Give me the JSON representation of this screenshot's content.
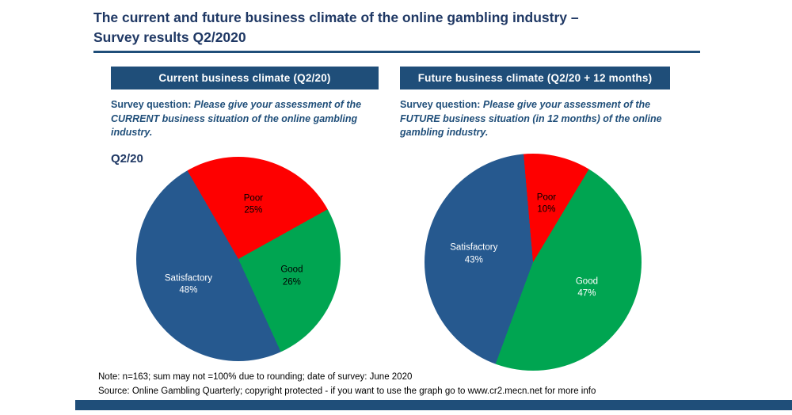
{
  "header": {
    "title_line1": "The current and future business climate of the online gambling industry –",
    "title_line2": "Survey results Q2/2020"
  },
  "panels": [
    {
      "header": "Current business climate (Q2/20)",
      "question_label": "Survey question:",
      "question_text": "Please give your assessment of the CURRENT business situation of the online gambling industry.",
      "period_label": "Q2/20"
    },
    {
      "header": "Future business climate (Q2/20 + 12 months)",
      "question_label": "Survey question:",
      "question_text": "Please give your assessment of the FUTURE business situation (in 12 months) of the online gambling industry."
    }
  ],
  "footer": {
    "note": "Note: n=163; sum may not =100% due to rounding; date of survey: June 2020",
    "source": "Source: Online Gambling Quarterly; copyright protected - if you want to use the graph go to www.cr2.mecn.net for more info"
  },
  "colors": {
    "accent_blue": "#1F4E79",
    "title_blue": "#1F3864",
    "pie_blue": "#26598F",
    "pie_green": "#00A551",
    "pie_red": "#FE0000"
  },
  "chart_data": [
    {
      "type": "pie",
      "title": "Current business climate (Q2/20)",
      "period": "Q2/20",
      "values_unit": "%",
      "start_angle": -30,
      "label_radius": 0.55,
      "slices": [
        {
          "label": "Poor",
          "value": 25,
          "color": "#FE0000",
          "text_color": "#000000"
        },
        {
          "label": "Good",
          "value": 26,
          "color": "#00A551",
          "text_color": "#000000"
        },
        {
          "label": "Satisfactory",
          "value": 48,
          "color": "#26598F",
          "text_color": "#FFFFFF"
        }
      ]
    },
    {
      "type": "pie",
      "title": "Future business climate (Q2/20 + 12 months)",
      "values_unit": "%",
      "start_angle": -5,
      "label_radius": 0.55,
      "slices": [
        {
          "label": "Poor",
          "value": 10,
          "color": "#FE0000",
          "text_color": "#000000"
        },
        {
          "label": "Good",
          "value": 47,
          "color": "#00A551",
          "text_color": "#FFFFFF"
        },
        {
          "label": "Satisfactory",
          "value": 43,
          "color": "#26598F",
          "text_color": "#FFFFFF"
        }
      ]
    }
  ]
}
